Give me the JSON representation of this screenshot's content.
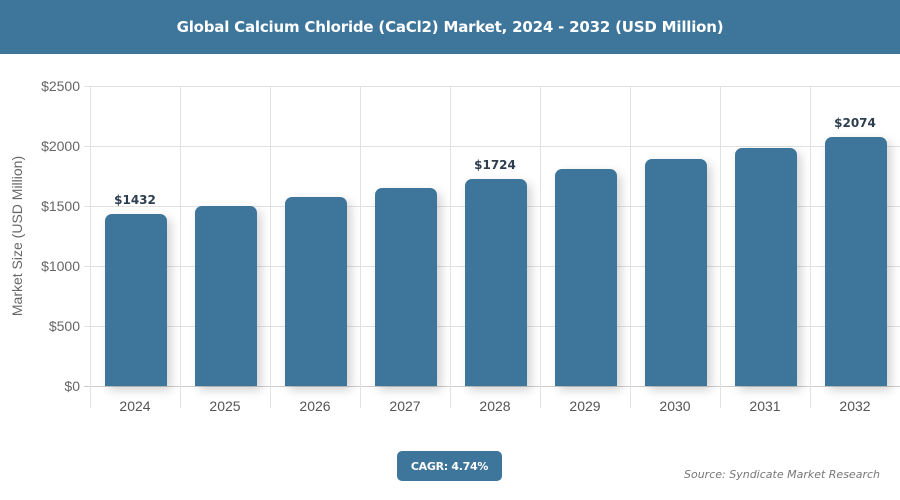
{
  "header": {
    "title": "Global Calcium Chloride (CaCl2) Market, 2024 - 2032 (USD Million)"
  },
  "chart_data": {
    "type": "bar",
    "title": "Global Calcium Chloride (CaCl2) Market, 2024 - 2032 (USD Million)",
    "xlabel": "",
    "ylabel": "Market Size (USD Million)",
    "categories": [
      "2024",
      "2025",
      "2026",
      "2027",
      "2028",
      "2029",
      "2030",
      "2031",
      "2032"
    ],
    "values": [
      1432,
      1500,
      1571,
      1646,
      1724,
      1806,
      1891,
      1981,
      2074
    ],
    "data_labels": [
      "$1432",
      "",
      "",
      "",
      "$1724",
      "",
      "",
      "",
      "$2074"
    ],
    "ylim": [
      0,
      2500
    ],
    "yticks": [
      "$0",
      "$500",
      "$1000",
      "$1500",
      "$2000",
      "$2500"
    ],
    "grid": true,
    "bar_color": "#3e759b"
  },
  "footer": {
    "cagr": "CAGR: 4.74%",
    "source": "Source: Syndicate Market Research"
  }
}
